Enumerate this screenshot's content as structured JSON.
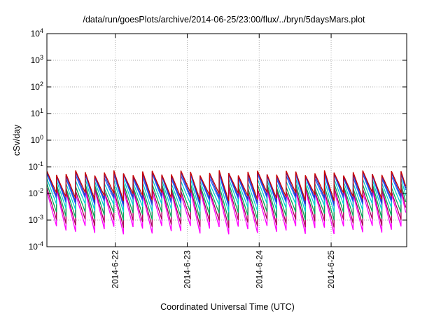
{
  "chart_data": {
    "type": "line",
    "title": "/data/run/goesPlots/archive/2014-06-25/23:00/flux/../bryn/5daysMars.plot",
    "xlabel": "Coordinated Universal Time (UTC)",
    "ylabel": "cSv/day",
    "y_scale": "log",
    "ylim_exponents": [
      -4,
      4
    ],
    "y_tick_base": "10",
    "y_tick_exponents": [
      "-4",
      "-3",
      "-2",
      "-1",
      "0",
      "1",
      "2",
      "3",
      "4"
    ],
    "xlim_days": [
      21.05,
      26.05
    ],
    "x_ticks": [
      {
        "label": "2014-6-22",
        "day": 22.0
      },
      {
        "label": "2014-6-23",
        "day": 23.0
      },
      {
        "label": "2014-6-24",
        "day": 24.0
      },
      {
        "label": "2014-6-25",
        "day": 25.0
      }
    ],
    "grid": true,
    "legend": "none",
    "pattern": {
      "period_days": 0.133,
      "start_day": 21.05
    },
    "series": [
      {
        "color": "#ff00ff",
        "peak": 0.012,
        "trough": 0.00045
      },
      {
        "color": "#aa0055",
        "peak": 0.015,
        "trough": 0.0008
      },
      {
        "color": "#00aa55",
        "peak": 0.02,
        "trough": 0.0015
      },
      {
        "color": "#00d0d0",
        "peak": 0.03,
        "trough": 0.003
      },
      {
        "color": "#2060ff",
        "peak": 0.045,
        "trough": 0.005
      },
      {
        "color": "#3030c0",
        "peak": 0.055,
        "trough": 0.006
      },
      {
        "color": "#cc0000",
        "peak": 0.06,
        "trough": 0.008
      }
    ]
  }
}
